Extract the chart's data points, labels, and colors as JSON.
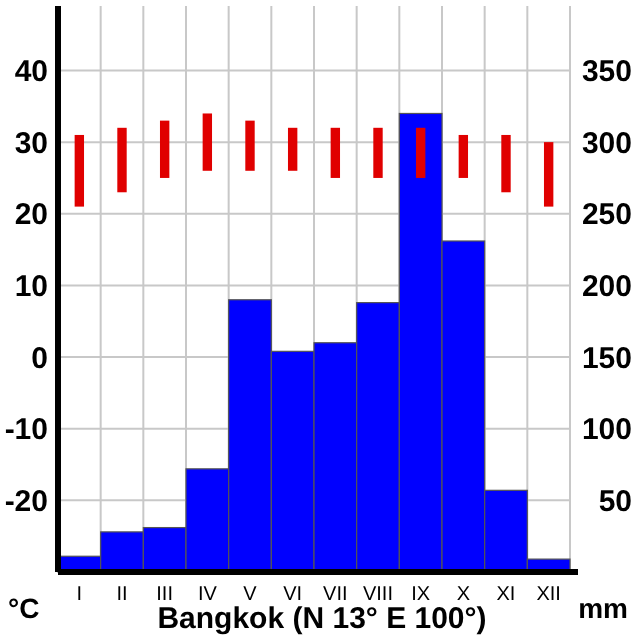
{
  "chart_data": {
    "type": "bar",
    "title": "Bangkok (N 13° E 100°)",
    "ylabel": "°C",
    "y2label": "mm",
    "categories": [
      "I",
      "II",
      "III",
      "IV",
      "V",
      "VI",
      "VII",
      "VIII",
      "IX",
      "X",
      "XI",
      "XII"
    ],
    "series": [
      {
        "axis": "y2",
        "color": "#0000ff",
        "values": [
          11,
          28,
          31,
          72,
          190,
          154,
          160,
          188,
          320,
          231,
          57,
          9
        ]
      },
      {
        "axis": "y",
        "color": "#e00000",
        "base": [
          21,
          23,
          25,
          26,
          26,
          26,
          25,
          25,
          25,
          25,
          23,
          21
        ],
        "values": [
          10,
          9,
          8,
          8,
          7,
          6,
          7,
          7,
          7,
          6,
          8,
          9
        ]
      }
    ],
    "ylim": [
      -30,
      49
    ],
    "yticks": [
      -20,
      -10,
      0,
      10,
      20,
      30,
      40
    ],
    "y2lim": [
      0,
      395
    ],
    "y2ticks": [
      50,
      100,
      150,
      200,
      250,
      300,
      350
    ],
    "grid": true
  }
}
